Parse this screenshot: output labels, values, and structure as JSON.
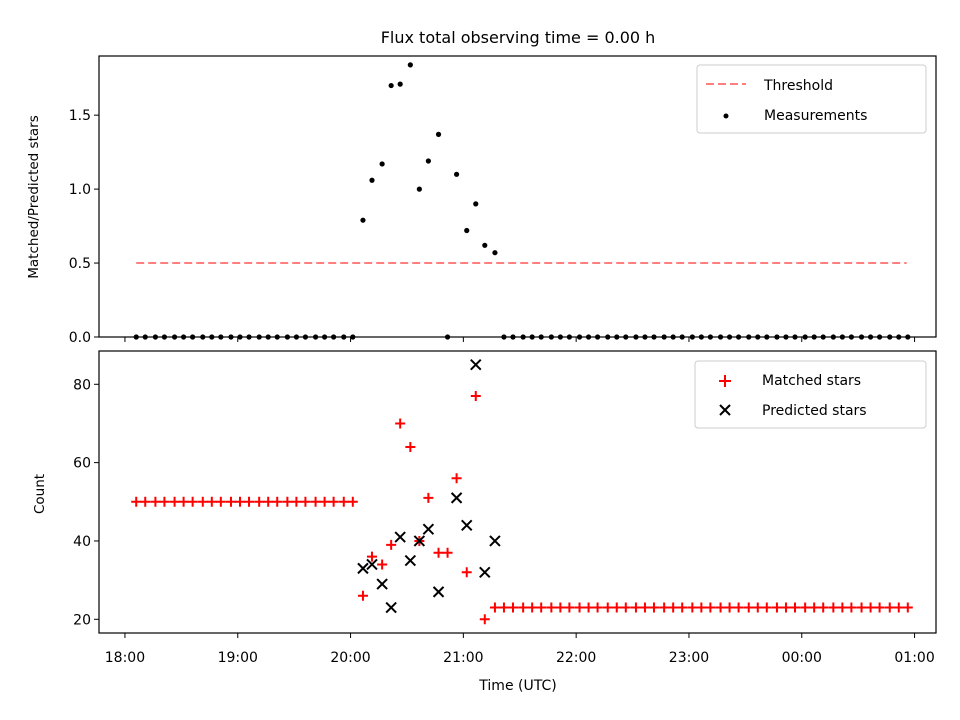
{
  "chart_data": [
    {
      "type": "scatter",
      "title": "Flux total observing time = 0.00 h",
      "ylabel": "Matched/Predicted stars",
      "xlabel": "",
      "ylim": [
        0,
        1.9
      ],
      "yticks": [
        "0.0",
        "0.5",
        "1.0",
        "1.5"
      ],
      "yticks_values": [
        0,
        0.5,
        1.0,
        1.5
      ],
      "xlim": [
        17.77,
        25.19
      ],
      "legend": {
        "placement": "top-right",
        "entries": [
          "Threshold",
          "Measurements"
        ]
      },
      "threshold": {
        "name": "Threshold",
        "value": 0.5,
        "x_start": 18.1,
        "x_end": 24.93,
        "color": "#ff7f7f",
        "style": "dashed"
      },
      "series": [
        {
          "name": "Measurements",
          "color": "#000000",
          "marker": "dot",
          "points": [
            [
              18.1,
              0
            ],
            [
              18.18,
              0
            ],
            [
              18.27,
              0
            ],
            [
              18.35,
              0
            ],
            [
              18.44,
              0
            ],
            [
              18.52,
              0
            ],
            [
              18.6,
              0
            ],
            [
              18.69,
              0
            ],
            [
              18.77,
              0
            ],
            [
              18.85,
              0
            ],
            [
              18.94,
              0
            ],
            [
              19.02,
              0
            ],
            [
              19.1,
              0
            ],
            [
              19.19,
              0
            ],
            [
              19.27,
              0
            ],
            [
              19.35,
              0
            ],
            [
              19.44,
              0
            ],
            [
              19.52,
              0
            ],
            [
              19.6,
              0
            ],
            [
              19.69,
              0
            ],
            [
              19.77,
              0
            ],
            [
              19.85,
              0
            ],
            [
              19.94,
              0
            ],
            [
              20.02,
              0
            ],
            [
              20.11,
              0.79
            ],
            [
              20.19,
              1.06
            ],
            [
              20.28,
              1.17
            ],
            [
              20.36,
              1.7
            ],
            [
              20.44,
              1.71
            ],
            [
              20.53,
              1.84
            ],
            [
              20.61,
              1.0
            ],
            [
              20.69,
              1.19
            ],
            [
              20.78,
              1.37
            ],
            [
              20.86,
              0
            ],
            [
              20.94,
              1.1
            ],
            [
              21.03,
              0.72
            ],
            [
              21.11,
              0.9
            ],
            [
              21.19,
              0.62
            ],
            [
              21.28,
              0.57
            ],
            [
              21.36,
              0
            ],
            [
              21.44,
              0
            ],
            [
              21.53,
              0
            ],
            [
              21.61,
              0
            ],
            [
              21.69,
              0
            ],
            [
              21.78,
              0
            ],
            [
              21.86,
              0
            ],
            [
              21.94,
              0
            ],
            [
              22.03,
              0
            ],
            [
              22.11,
              0
            ],
            [
              22.19,
              0
            ],
            [
              22.28,
              0
            ],
            [
              22.36,
              0
            ],
            [
              22.44,
              0
            ],
            [
              22.53,
              0
            ],
            [
              22.61,
              0
            ],
            [
              22.69,
              0
            ],
            [
              22.78,
              0
            ],
            [
              22.86,
              0
            ],
            [
              22.94,
              0
            ],
            [
              23.03,
              0
            ],
            [
              23.11,
              0
            ],
            [
              23.19,
              0
            ],
            [
              23.28,
              0
            ],
            [
              23.36,
              0
            ],
            [
              23.44,
              0
            ],
            [
              23.53,
              0
            ],
            [
              23.61,
              0
            ],
            [
              23.69,
              0
            ],
            [
              23.78,
              0
            ],
            [
              23.86,
              0
            ],
            [
              23.94,
              0
            ],
            [
              24.03,
              0
            ],
            [
              24.11,
              0
            ],
            [
              24.19,
              0
            ],
            [
              24.28,
              0
            ],
            [
              24.36,
              0
            ],
            [
              24.44,
              0
            ],
            [
              24.53,
              0
            ],
            [
              24.61,
              0
            ],
            [
              24.69,
              0
            ],
            [
              24.78,
              0
            ],
            [
              24.86,
              0
            ],
            [
              24.94,
              0
            ]
          ]
        }
      ]
    },
    {
      "type": "scatter",
      "title": "",
      "ylabel": "Count",
      "xlabel": "Time (UTC)",
      "ylim": [
        16.5,
        88.5
      ],
      "yticks": [
        "20",
        "40",
        "60",
        "80"
      ],
      "yticks_values": [
        20,
        40,
        60,
        80
      ],
      "xlim": [
        17.77,
        25.19
      ],
      "xticks": [
        "18:00",
        "19:00",
        "20:00",
        "21:00",
        "22:00",
        "23:00",
        "00:00",
        "01:00"
      ],
      "xticks_values": [
        18,
        19,
        20,
        21,
        22,
        23,
        24,
        25
      ],
      "legend": {
        "placement": "top-right",
        "entries": [
          "Matched stars",
          "Predicted stars"
        ]
      },
      "series": [
        {
          "name": "Matched stars",
          "color": "#ff0000",
          "marker": "plus",
          "points": [
            [
              18.1,
              50
            ],
            [
              18.18,
              50
            ],
            [
              18.27,
              50
            ],
            [
              18.35,
              50
            ],
            [
              18.44,
              50
            ],
            [
              18.52,
              50
            ],
            [
              18.6,
              50
            ],
            [
              18.69,
              50
            ],
            [
              18.77,
              50
            ],
            [
              18.85,
              50
            ],
            [
              18.94,
              50
            ],
            [
              19.02,
              50
            ],
            [
              19.1,
              50
            ],
            [
              19.19,
              50
            ],
            [
              19.27,
              50
            ],
            [
              19.35,
              50
            ],
            [
              19.44,
              50
            ],
            [
              19.52,
              50
            ],
            [
              19.6,
              50
            ],
            [
              19.69,
              50
            ],
            [
              19.77,
              50
            ],
            [
              19.85,
              50
            ],
            [
              19.94,
              50
            ],
            [
              20.02,
              50
            ],
            [
              20.11,
              26
            ],
            [
              20.19,
              36
            ],
            [
              20.28,
              34
            ],
            [
              20.36,
              39
            ],
            [
              20.44,
              70
            ],
            [
              20.53,
              64
            ],
            [
              20.61,
              40
            ],
            [
              20.69,
              51
            ],
            [
              20.78,
              37
            ],
            [
              20.86,
              37
            ],
            [
              20.94,
              56
            ],
            [
              21.03,
              32
            ],
            [
              21.11,
              77
            ],
            [
              21.19,
              20
            ],
            [
              21.28,
              23
            ],
            [
              21.36,
              23
            ],
            [
              21.44,
              23
            ],
            [
              21.53,
              23
            ],
            [
              21.61,
              23
            ],
            [
              21.69,
              23
            ],
            [
              21.78,
              23
            ],
            [
              21.86,
              23
            ],
            [
              21.94,
              23
            ],
            [
              22.03,
              23
            ],
            [
              22.11,
              23
            ],
            [
              22.19,
              23
            ],
            [
              22.28,
              23
            ],
            [
              22.36,
              23
            ],
            [
              22.44,
              23
            ],
            [
              22.53,
              23
            ],
            [
              22.61,
              23
            ],
            [
              22.69,
              23
            ],
            [
              22.78,
              23
            ],
            [
              22.86,
              23
            ],
            [
              22.94,
              23
            ],
            [
              23.03,
              23
            ],
            [
              23.11,
              23
            ],
            [
              23.19,
              23
            ],
            [
              23.28,
              23
            ],
            [
              23.36,
              23
            ],
            [
              23.44,
              23
            ],
            [
              23.53,
              23
            ],
            [
              23.61,
              23
            ],
            [
              23.69,
              23
            ],
            [
              23.78,
              23
            ],
            [
              23.86,
              23
            ],
            [
              23.94,
              23
            ],
            [
              24.03,
              23
            ],
            [
              24.11,
              23
            ],
            [
              24.19,
              23
            ],
            [
              24.28,
              23
            ],
            [
              24.36,
              23
            ],
            [
              24.44,
              23
            ],
            [
              24.53,
              23
            ],
            [
              24.61,
              23
            ],
            [
              24.69,
              23
            ],
            [
              24.78,
              23
            ],
            [
              24.86,
              23
            ],
            [
              24.94,
              23
            ]
          ]
        },
        {
          "name": "Predicted stars",
          "color": "#000000",
          "marker": "x",
          "points": [
            [
              20.11,
              33
            ],
            [
              20.19,
              34
            ],
            [
              20.28,
              29
            ],
            [
              20.36,
              23
            ],
            [
              20.44,
              41
            ],
            [
              20.53,
              35
            ],
            [
              20.61,
              40
            ],
            [
              20.69,
              43
            ],
            [
              20.78,
              27
            ],
            [
              20.94,
              51
            ],
            [
              21.03,
              44
            ],
            [
              21.11,
              85
            ],
            [
              21.19,
              32
            ],
            [
              21.28,
              40
            ]
          ]
        }
      ]
    }
  ]
}
